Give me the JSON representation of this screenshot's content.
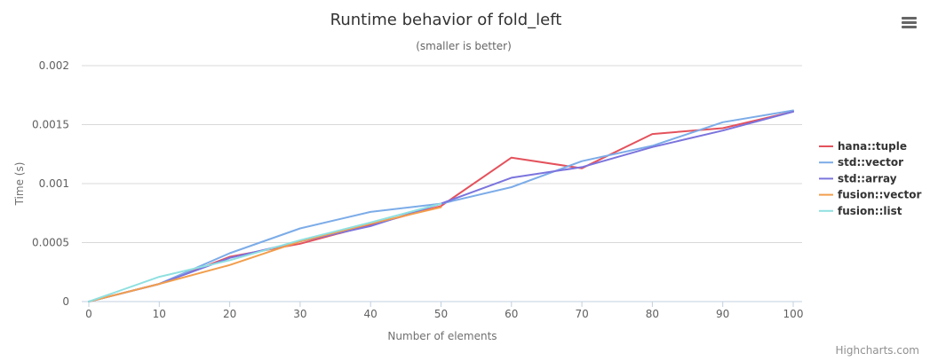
{
  "chart_data": {
    "type": "line",
    "title": "Runtime behavior of fold_left",
    "subtitle": "(smaller is better)",
    "xlabel": "Number of elements",
    "ylabel": "Time (s)",
    "xlim": [
      0,
      100
    ],
    "ylim": [
      0,
      0.002
    ],
    "x_ticks": [
      "0",
      "10",
      "20",
      "30",
      "40",
      "50",
      "60",
      "70",
      "80",
      "90",
      "100"
    ],
    "y_ticks": [
      "0",
      "0.0005",
      "0.001",
      "0.0015",
      "0.002"
    ],
    "grid": true,
    "legend_position": "right",
    "series": [
      {
        "name": "hana::tuple",
        "color": "#e4525c",
        "x": [
          0,
          10,
          20,
          30,
          40,
          50,
          60,
          70,
          80,
          90,
          100
        ],
        "y": [
          0,
          0.00015,
          0.00038,
          0.00049,
          0.00065,
          0.00081,
          0.00122,
          0.00113,
          0.00142,
          0.00147,
          0.00161
        ]
      },
      {
        "name": "std::vector",
        "color": "#7cace8",
        "x": [
          0,
          10,
          20,
          30,
          40,
          50,
          60,
          70,
          80,
          90,
          100
        ],
        "y": [
          0,
          0.00015,
          0.00041,
          0.00062,
          0.00076,
          0.00083,
          0.00097,
          0.00119,
          0.00132,
          0.00152,
          0.00162
        ]
      },
      {
        "name": "std::array",
        "color": "#7b74dd",
        "x": [
          0,
          10,
          20,
          30,
          40,
          50,
          60,
          70,
          80,
          90,
          100
        ],
        "y": [
          0,
          0.00015,
          0.00037,
          0.00051,
          0.00064,
          0.00083,
          0.00105,
          0.00114,
          0.00131,
          0.00145,
          0.00161
        ]
      },
      {
        "name": "fusion::vector",
        "color": "#f29e4c",
        "x": [
          0,
          10,
          20,
          30,
          40,
          50
        ],
        "y": [
          0,
          0.00015,
          0.00031,
          0.00051,
          0.00066,
          0.0008
        ]
      },
      {
        "name": "fusion::list",
        "color": "#8fe0e0",
        "x": [
          0,
          10,
          20,
          30,
          40,
          50
        ],
        "y": [
          0,
          0.00021,
          0.00035,
          0.00052,
          0.00067,
          0.00083
        ]
      }
    ]
  },
  "menu_icon": "hamburger-menu-icon",
  "credits": "Highcharts.com"
}
